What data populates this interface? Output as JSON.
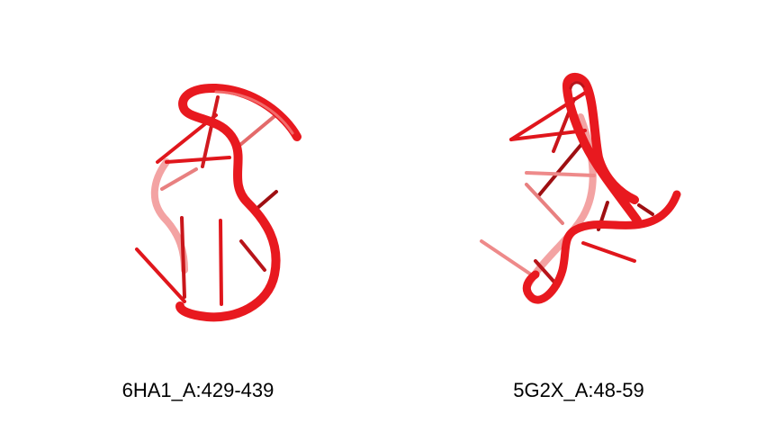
{
  "structures": [
    {
      "label": "6HA1_A:429-439",
      "color": "#e8191f"
    },
    {
      "label": "5G2X_A:48-59",
      "color": "#e8191f"
    }
  ],
  "colors": {
    "backbone": "#e8191f",
    "backbone_light": "#f06a6a",
    "base": "#e0161c",
    "base_dark": "#9e0f12",
    "background": "#ffffff"
  }
}
